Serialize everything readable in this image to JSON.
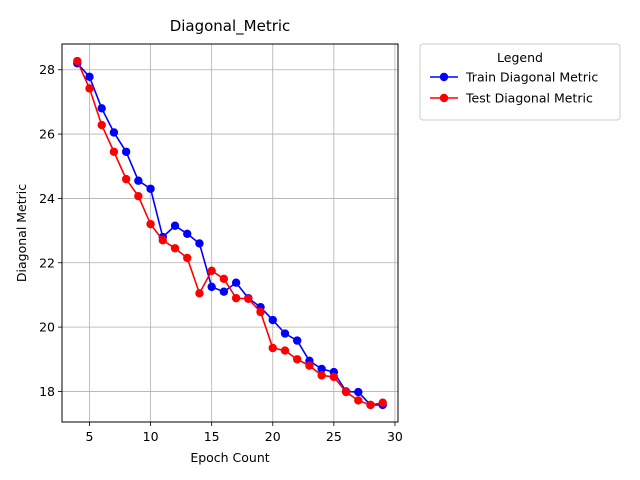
{
  "chart_data": {
    "type": "line",
    "title": "Diagonal_Metric",
    "xlabel": "Epoch Count",
    "ylabel": "Diagonal Metric",
    "xlim": [
      2.75,
      30.25
    ],
    "ylim": [
      17.05,
      28.8
    ],
    "xticks": [
      5,
      10,
      15,
      20,
      25,
      30
    ],
    "yticks": [
      18,
      20,
      22,
      24,
      26,
      28
    ],
    "grid": true,
    "legend": {
      "title": "Legend",
      "placement": "outside-top-right"
    },
    "x": [
      4,
      5,
      6,
      7,
      8,
      9,
      10,
      11,
      12,
      13,
      14,
      15,
      16,
      17,
      18,
      19,
      20,
      21,
      22,
      23,
      24,
      25,
      26,
      27,
      28,
      29
    ],
    "series": [
      {
        "name": "Train Diagonal Metric",
        "color": "#0000ff",
        "values": [
          28.2,
          27.78,
          26.8,
          26.05,
          25.45,
          24.55,
          24.3,
          22.8,
          23.15,
          22.9,
          22.6,
          21.25,
          21.1,
          21.38,
          20.9,
          20.62,
          20.22,
          19.8,
          19.58,
          18.95,
          18.7,
          18.6,
          18.0,
          17.98,
          17.58,
          17.58
        ]
      },
      {
        "name": "Test Diagonal Metric",
        "color": "#ff0000",
        "values": [
          28.27,
          27.42,
          26.28,
          25.45,
          24.6,
          24.07,
          23.2,
          22.7,
          22.45,
          22.15,
          21.05,
          21.75,
          21.5,
          20.9,
          20.88,
          20.47,
          19.35,
          19.27,
          19.0,
          18.8,
          18.5,
          18.45,
          17.98,
          17.72,
          17.58,
          17.65
        ]
      }
    ]
  }
}
